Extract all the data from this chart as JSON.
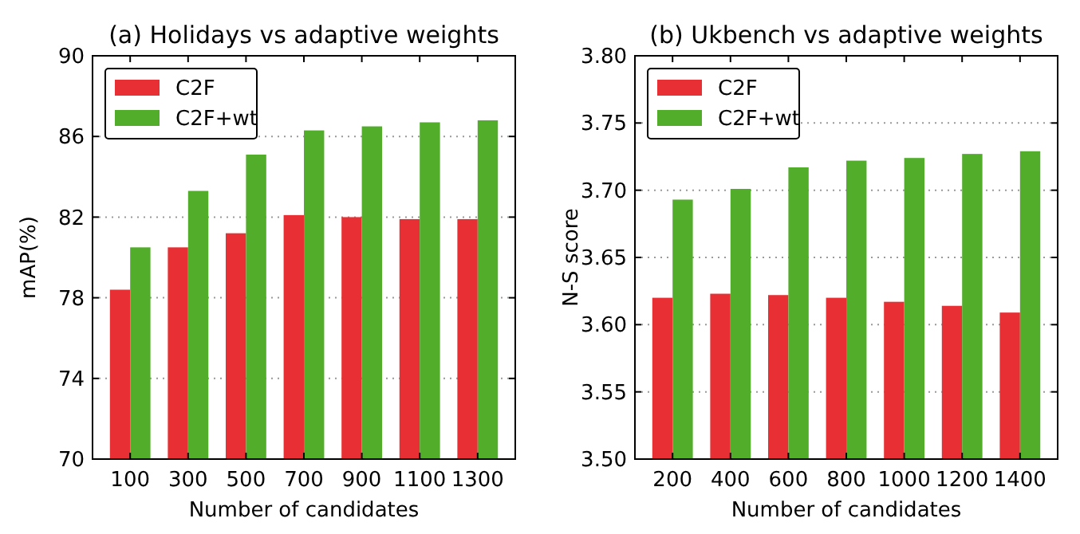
{
  "chart_data": [
    {
      "type": "bar",
      "title": "(a) Holidays vs adaptive weights",
      "xlabel": "Number of candidates",
      "ylabel": "mAP(%)",
      "categories": [
        "100",
        "300",
        "500",
        "700",
        "900",
        "1100",
        "1300"
      ],
      "series": [
        {
          "name": "C2F",
          "color": "#e83034",
          "values": [
            78.4,
            80.5,
            81.2,
            82.1,
            82.0,
            81.9,
            81.9
          ]
        },
        {
          "name": "C2F+wt",
          "color": "#52ad2b",
          "values": [
            80.5,
            83.3,
            85.1,
            86.3,
            86.5,
            86.7,
            86.8
          ]
        }
      ],
      "ylim": [
        70,
        90
      ],
      "yticks": [
        70,
        74,
        78,
        82,
        86,
        90
      ],
      "grid": "y",
      "legend": "top left"
    },
    {
      "type": "bar",
      "title": "(b) Ukbench vs adaptive weights",
      "xlabel": "Number of candidates",
      "ylabel": "N-S score",
      "categories": [
        "200",
        "400",
        "600",
        "800",
        "1000",
        "1200",
        "1400"
      ],
      "series": [
        {
          "name": "C2F",
          "color": "#e83034",
          "values": [
            3.62,
            3.623,
            3.622,
            3.62,
            3.617,
            3.614,
            3.609
          ]
        },
        {
          "name": "C2F+wt",
          "color": "#52ad2b",
          "values": [
            3.693,
            3.701,
            3.717,
            3.722,
            3.724,
            3.727,
            3.729
          ]
        }
      ],
      "ylim": [
        3.5,
        3.8
      ],
      "yticks": [
        {
          "value": 3.5,
          "label": "3.50"
        },
        {
          "value": 3.55,
          "label": "3.55"
        },
        {
          "value": 3.6,
          "label": "3.60"
        },
        {
          "value": 3.65,
          "label": "3.65"
        },
        {
          "value": 3.7,
          "label": "3.70"
        },
        {
          "value": 3.75,
          "label": "3.75"
        },
        {
          "value": 3.8,
          "label": "3.80"
        }
      ],
      "grid": "y",
      "legend": "top left"
    }
  ]
}
